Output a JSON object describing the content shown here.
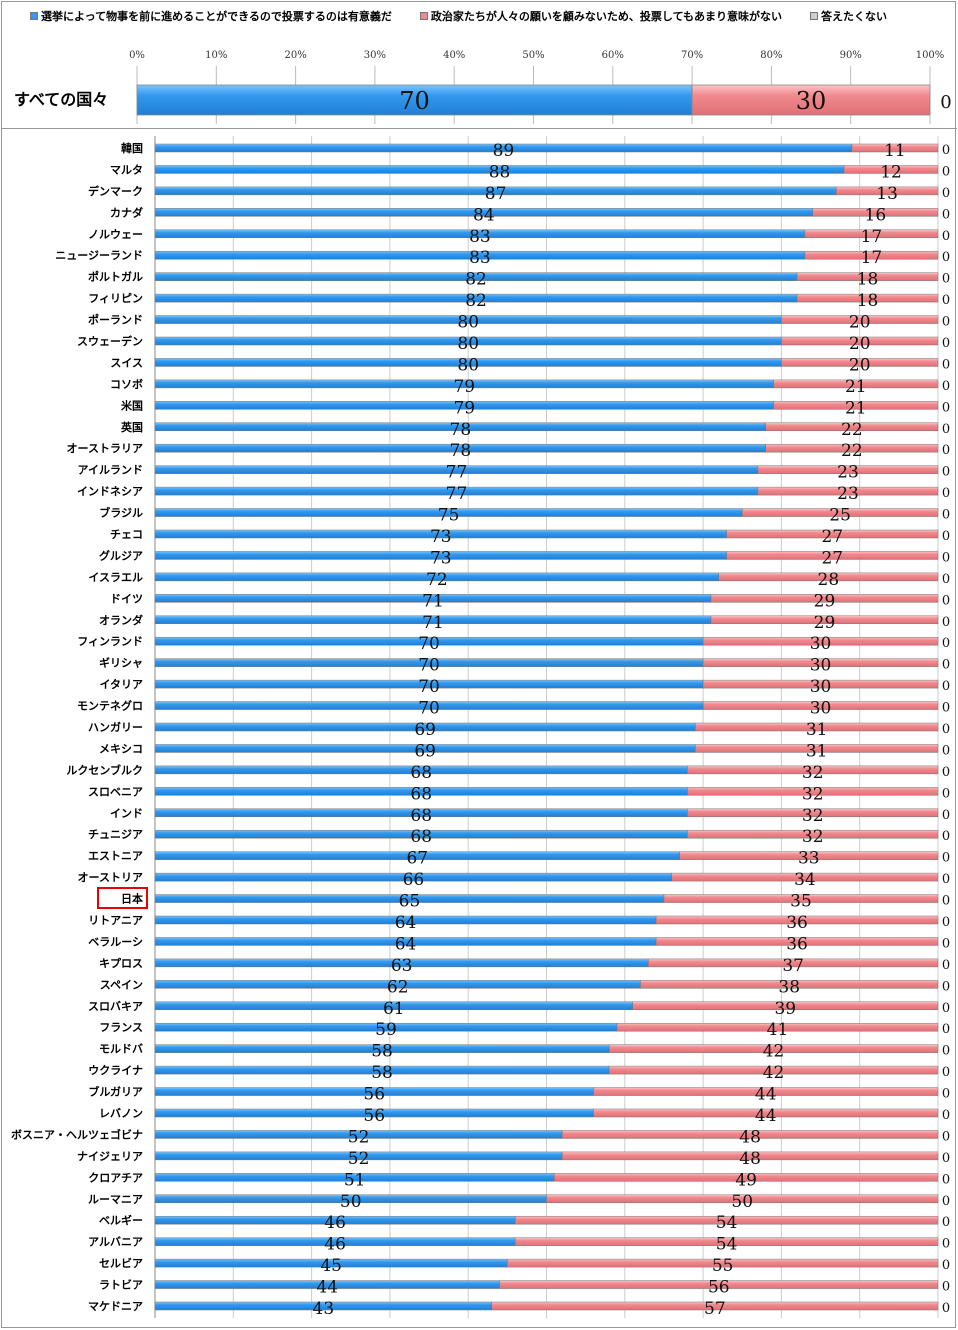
{
  "chart_data": [
    {
      "type": "bar",
      "orientation": "horizontal",
      "stacked": true,
      "categories": [
        "すべての国々"
      ],
      "series": [
        {
          "name": "選挙によって物事を前に進めることができるので投票するのは有意義だ",
          "values": [
            70
          ],
          "color": "#3399ee"
        },
        {
          "name": "政治家たちが人々の願いを顧みないため、投票してもあまり意味がない",
          "values": [
            30
          ],
          "color": "#f08a8f"
        },
        {
          "name": "答えたくない",
          "values": [
            0
          ],
          "color": "#cccccc"
        }
      ],
      "xlim": [
        0,
        100
      ],
      "x_ticks": [
        "0%",
        "10%",
        "20%",
        "30%",
        "40%",
        "50%",
        "60%",
        "70%",
        "80%",
        "90%",
        "100%"
      ],
      "grid": true,
      "legend": "top"
    },
    {
      "type": "bar",
      "orientation": "horizontal",
      "stacked": true,
      "categories": [
        "韓国",
        "マルタ",
        "デンマーク",
        "カナダ",
        "ノルウェー",
        "ニュージーランド",
        "ポルトガル",
        "フィリピン",
        "ポーランド",
        "スウェーデン",
        "スイス",
        "コソボ",
        "米国",
        "英国",
        "オーストラリア",
        "アイルランド",
        "インドネシア",
        "ブラジル",
        "チェコ",
        "グルジア",
        "イスラエル",
        "ドイツ",
        "オランダ",
        "フィンランド",
        "ギリシャ",
        "イタリア",
        "モンテネグロ",
        "ハンガリー",
        "メキシコ",
        "ルクセンブルク",
        "スロベニア",
        "インド",
        "チュニジア",
        "エストニア",
        "オーストリア",
        "日本",
        "リトアニア",
        "ベラルーシ",
        "キプロス",
        "スペイン",
        "スロバキア",
        "フランス",
        "モルドバ",
        "ウクライナ",
        "ブルガリア",
        "レバノン",
        "ボスニア・ヘルツェゴビナ",
        "ナイジェリア",
        "クロアチア",
        "ルーマニア",
        "ベルギー",
        "アルバニア",
        "セルビア",
        "ラトビア",
        "マケドニア"
      ],
      "series": [
        {
          "name": "選挙によって物事を前に進めることができるので投票するのは有意義だ",
          "values": [
            89,
            88,
            87,
            84,
            83,
            83,
            82,
            82,
            80,
            80,
            80,
            79,
            79,
            78,
            78,
            77,
            77,
            75,
            73,
            73,
            72,
            71,
            71,
            70,
            70,
            70,
            70,
            69,
            69,
            68,
            68,
            68,
            68,
            67,
            66,
            65,
            64,
            64,
            63,
            62,
            61,
            59,
            58,
            58,
            56,
            56,
            52,
            52,
            51,
            50,
            46,
            46,
            45,
            44,
            43
          ]
        },
        {
          "name": "政治家たちが人々の願いを顧みないため、投票してもあまり意味がない",
          "values": [
            11,
            12,
            13,
            16,
            17,
            17,
            18,
            18,
            20,
            20,
            20,
            21,
            21,
            22,
            22,
            23,
            23,
            25,
            27,
            27,
            28,
            29,
            29,
            30,
            30,
            30,
            30,
            31,
            31,
            32,
            32,
            32,
            32,
            33,
            34,
            35,
            36,
            36,
            37,
            38,
            39,
            41,
            42,
            42,
            44,
            44,
            48,
            48,
            49,
            50,
            54,
            54,
            55,
            56,
            57
          ]
        },
        {
          "name": "答えたくない",
          "values": [
            0,
            0,
            0,
            0,
            0,
            0,
            0,
            0,
            0,
            0,
            0,
            0,
            0,
            0,
            0,
            0,
            0,
            0,
            0,
            0,
            0,
            0,
            0,
            0,
            0,
            0,
            0,
            0,
            0,
            0,
            0,
            0,
            0,
            0,
            0,
            0,
            0,
            0,
            0,
            0,
            0,
            0,
            0,
            0,
            0,
            0,
            0,
            0,
            0,
            0,
            0,
            0,
            0,
            0,
            0
          ]
        }
      ],
      "xlim": [
        0,
        100
      ],
      "grid": true,
      "highlighted_category": "日本",
      "highlight_color": "#ee0000"
    }
  ]
}
